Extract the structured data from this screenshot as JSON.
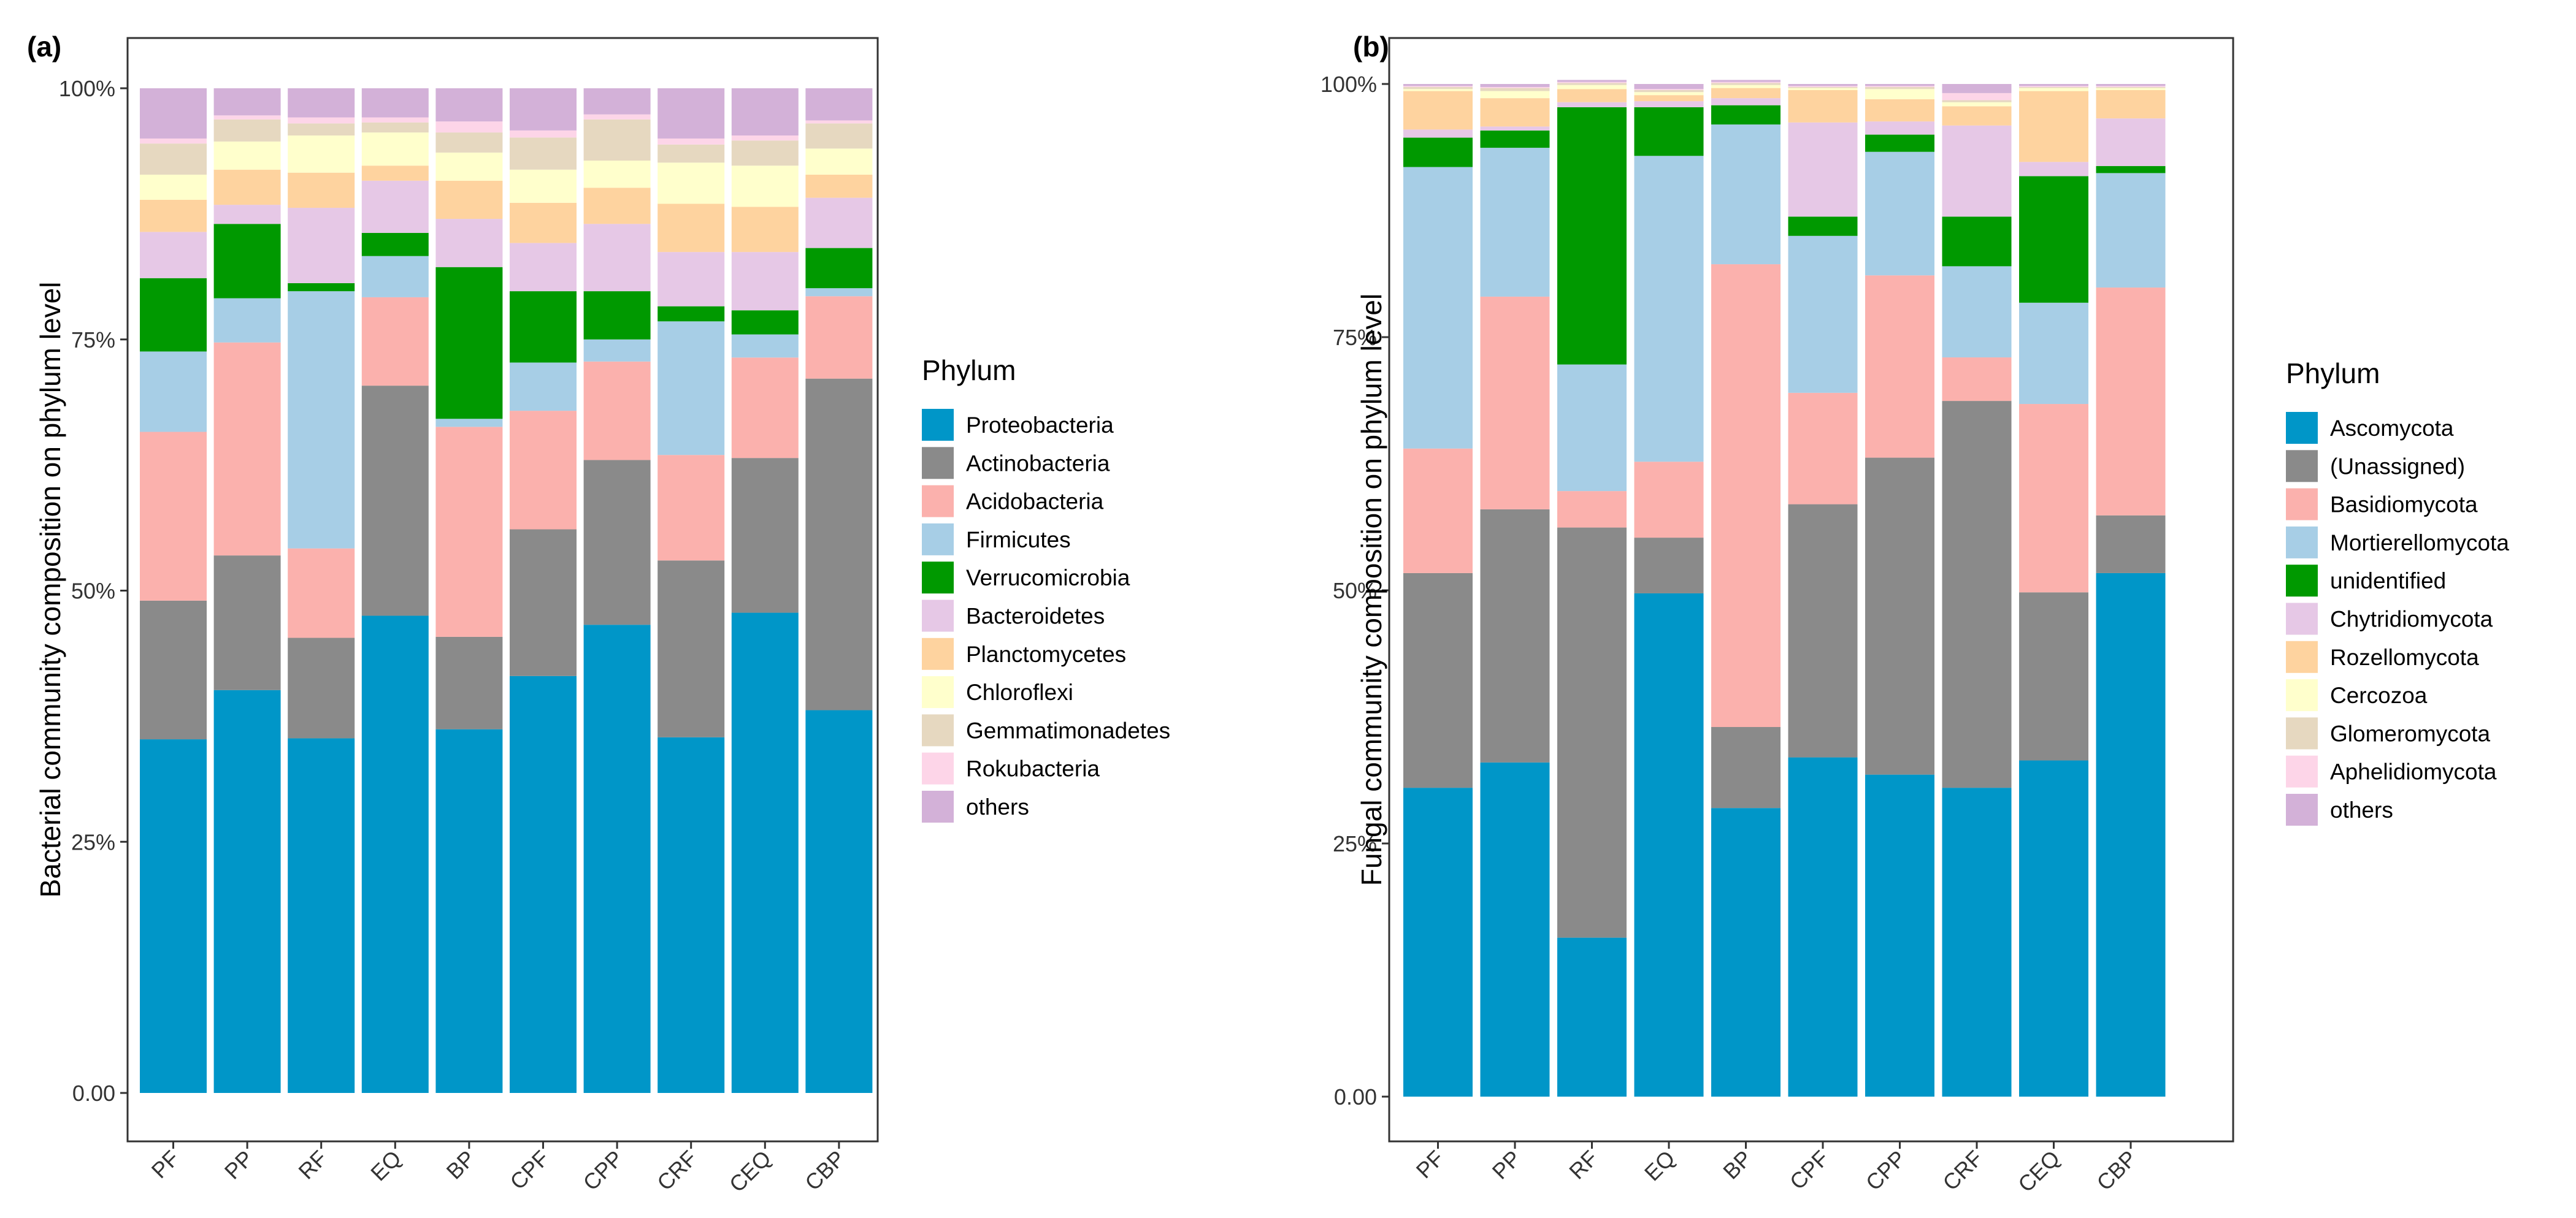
{
  "chart_data": [
    {
      "type": "bar",
      "stacked": true,
      "panel_label": "(a)",
      "ylabel": "Bacterial community composition on phylum level",
      "xlabel": "",
      "ylim": [
        0,
        1
      ],
      "y_ticks": [
        "0.00",
        "25%",
        "50%",
        "75%",
        "100%"
      ],
      "legend_title": "Phylum",
      "legend_position": "right",
      "categories": [
        "PF",
        "PP",
        "RF",
        "EQ",
        "BP",
        "CPF",
        "CPP",
        "CRF",
        "CEQ",
        "CBP"
      ],
      "series": [
        {
          "name": "Proteobacteria",
          "color": "#0096C8",
          "values": [
            0.352,
            0.401,
            0.353,
            0.475,
            0.362,
            0.415,
            0.466,
            0.354,
            0.478,
            0.381
          ]
        },
        {
          "name": "Actinobacteria",
          "color": "#8A8A8A",
          "values": [
            0.138,
            0.134,
            0.1,
            0.229,
            0.092,
            0.146,
            0.164,
            0.176,
            0.154,
            0.33
          ]
        },
        {
          "name": "Acidobacteria",
          "color": "#FBB1AD",
          "values": [
            0.168,
            0.212,
            0.089,
            0.088,
            0.209,
            0.118,
            0.098,
            0.105,
            0.1,
            0.082
          ]
        },
        {
          "name": "Firmicutes",
          "color": "#A7CEE6",
          "values": [
            0.08,
            0.044,
            0.256,
            0.041,
            0.008,
            0.048,
            0.022,
            0.133,
            0.023,
            0.008
          ]
        },
        {
          "name": "Verrucomicrobia",
          "color": "#009900",
          "values": [
            0.073,
            0.074,
            0.008,
            0.023,
            0.151,
            0.071,
            0.048,
            0.015,
            0.024,
            0.04
          ]
        },
        {
          "name": "Bacteroidetes",
          "color": "#E6C8E6",
          "values": [
            0.046,
            0.019,
            0.075,
            0.052,
            0.048,
            0.048,
            0.067,
            0.054,
            0.058,
            0.05
          ]
        },
        {
          "name": "Planctomycetes",
          "color": "#FED39F",
          "values": [
            0.032,
            0.035,
            0.035,
            0.015,
            0.038,
            0.04,
            0.036,
            0.048,
            0.045,
            0.023
          ]
        },
        {
          "name": "Chloroflexi",
          "color": "#FFFFCC",
          "values": [
            0.025,
            0.028,
            0.037,
            0.033,
            0.028,
            0.033,
            0.027,
            0.041,
            0.041,
            0.026
          ]
        },
        {
          "name": "Gemmatimonadetes",
          "color": "#E6D8C0",
          "values": [
            0.031,
            0.022,
            0.012,
            0.01,
            0.02,
            0.032,
            0.041,
            0.018,
            0.025,
            0.025
          ]
        },
        {
          "name": "Rokubacteria",
          "color": "#FDD5E8",
          "values": [
            0.005,
            0.004,
            0.006,
            0.005,
            0.011,
            0.007,
            0.005,
            0.006,
            0.005,
            0.003
          ]
        },
        {
          "name": "others",
          "color": "#D3B1D8",
          "values": [
            0.05,
            0.027,
            0.029,
            0.029,
            0.033,
            0.042,
            0.026,
            0.05,
            0.047,
            0.032
          ]
        }
      ]
    },
    {
      "type": "bar",
      "stacked": true,
      "panel_label": "(b)",
      "ylabel": "Fungal community composition on phylum level",
      "xlabel": "",
      "ylim": [
        0,
        1
      ],
      "y_ticks": [
        "0.00",
        "25%",
        "50%",
        "75%",
        "100%"
      ],
      "legend_title": "Phylum",
      "legend_position": "right",
      "categories": [
        "PF",
        "PP",
        "RF",
        "EQ",
        "BP",
        "CPF",
        "CPP",
        "CRF",
        "CEQ",
        "CBP"
      ],
      "series": [
        {
          "name": "Ascomycota",
          "color": "#0096C8",
          "values": [
            0.305,
            0.33,
            0.157,
            0.497,
            0.285,
            0.335,
            0.318,
            0.305,
            0.332,
            0.517
          ]
        },
        {
          "name": "(Unassigned)",
          "color": "#8A8A8A",
          "values": [
            0.212,
            0.25,
            0.405,
            0.055,
            0.08,
            0.25,
            0.313,
            0.382,
            0.166,
            0.057
          ]
        },
        {
          "name": "Basidiomycota",
          "color": "#FBB1AD",
          "values": [
            0.123,
            0.21,
            0.036,
            0.075,
            0.457,
            0.11,
            0.18,
            0.043,
            0.186,
            0.225
          ]
        },
        {
          "name": "Mortierellomycota",
          "color": "#A7CEE6",
          "values": [
            0.278,
            0.147,
            0.125,
            0.302,
            0.138,
            0.155,
            0.122,
            0.09,
            0.1,
            0.113
          ]
        },
        {
          "name": "unidentified",
          "color": "#009900",
          "values": [
            0.029,
            0.017,
            0.254,
            0.048,
            0.019,
            0.019,
            0.017,
            0.049,
            0.125,
            0.007
          ]
        },
        {
          "name": "Chytridiomycota",
          "color": "#E6C8E6",
          "values": [
            0.008,
            0.004,
            0.005,
            0.006,
            0.007,
            0.093,
            0.013,
            0.09,
            0.014,
            0.047
          ]
        },
        {
          "name": "Rozellomycota",
          "color": "#FED39F",
          "values": [
            0.038,
            0.028,
            0.013,
            0.006,
            0.01,
            0.032,
            0.022,
            0.019,
            0.07,
            0.028
          ]
        },
        {
          "name": "Cercozoa",
          "color": "#FFFFCC",
          "values": [
            0.002,
            0.007,
            0.004,
            0.003,
            0.003,
            0.002,
            0.01,
            0.004,
            0.003,
            0.002
          ]
        },
        {
          "name": "Glomeromycota",
          "color": "#E6D8C0",
          "values": [
            0.002,
            0.003,
            0.002,
            0.002,
            0.002,
            0.001,
            0.002,
            0.002,
            0.001,
            0.001
          ]
        },
        {
          "name": "Aphelidiomycota",
          "color": "#FDD5E8",
          "values": [
            0.001,
            0.001,
            0.001,
            0.001,
            0.001,
            0.001,
            0.001,
            0.007,
            0.001,
            0.001
          ]
        },
        {
          "name": "others",
          "color": "#D3B1D8",
          "values": [
            0.002,
            0.003,
            0.002,
            0.005,
            0.002,
            0.002,
            0.002,
            0.009,
            0.002,
            0.002
          ]
        }
      ]
    }
  ]
}
